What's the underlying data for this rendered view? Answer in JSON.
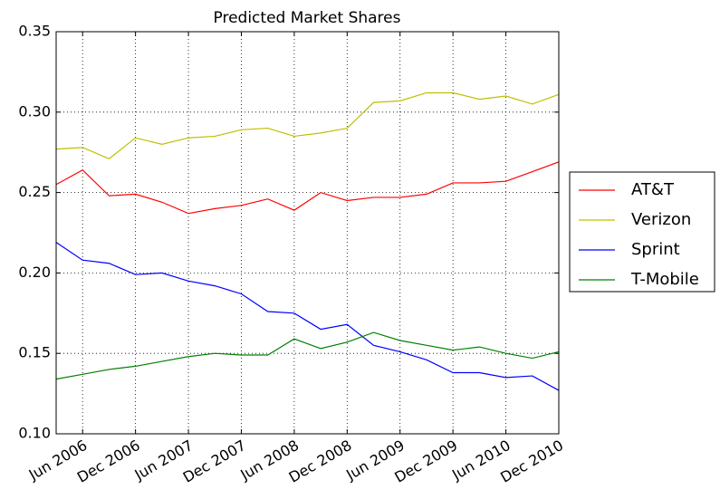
{
  "chart_data": {
    "type": "line",
    "title": "Predicted Market Shares",
    "x": [
      "2006-03",
      "2006-06",
      "2006-09",
      "2006-12",
      "2007-03",
      "2007-06",
      "2007-09",
      "2007-12",
      "2008-03",
      "2008-06",
      "2008-09",
      "2008-12",
      "2009-03",
      "2009-06",
      "2009-09",
      "2009-12",
      "2010-03",
      "2010-06",
      "2010-09",
      "2010-12"
    ],
    "xlim": [
      "2006-03",
      "2010-12"
    ],
    "xticks": [
      {
        "value": "2006-06",
        "label": "Jun 2006"
      },
      {
        "value": "2006-12",
        "label": "Dec 2006"
      },
      {
        "value": "2007-06",
        "label": "Jun 2007"
      },
      {
        "value": "2007-12",
        "label": "Dec 2007"
      },
      {
        "value": "2008-06",
        "label": "Jun 2008"
      },
      {
        "value": "2008-12",
        "label": "Dec 2008"
      },
      {
        "value": "2009-06",
        "label": "Jun 2009"
      },
      {
        "value": "2009-12",
        "label": "Dec 2009"
      },
      {
        "value": "2010-06",
        "label": "Jun 2010"
      },
      {
        "value": "2010-12",
        "label": "Dec 2010"
      }
    ],
    "ylim": [
      0.1,
      0.35
    ],
    "yticks": [
      {
        "value": 0.1,
        "label": "0.10"
      },
      0.15,
      {
        "value": 0.2,
        "label": "0.20"
      },
      0.25,
      {
        "value": 0.3,
        "label": "0.30"
      },
      0.35
    ],
    "grid": true,
    "legend": "outside-right",
    "series": [
      {
        "name": "AT&T",
        "color": "#ff0000",
        "values": [
          0.255,
          0.264,
          0.248,
          0.249,
          0.244,
          0.237,
          0.24,
          0.242,
          0.246,
          0.239,
          0.25,
          0.245,
          0.247,
          0.247,
          0.249,
          0.256,
          0.256,
          0.257,
          0.263,
          0.269
        ]
      },
      {
        "name": "Verizon",
        "color": "#bfbf00",
        "values": [
          0.277,
          0.278,
          0.271,
          0.284,
          0.28,
          0.284,
          0.285,
          0.289,
          0.29,
          0.285,
          0.287,
          0.29,
          0.306,
          0.307,
          0.312,
          0.312,
          0.308,
          0.31,
          0.305,
          0.311
        ]
      },
      {
        "name": "Sprint",
        "color": "#0000ff",
        "values": [
          0.219,
          0.208,
          0.206,
          0.199,
          0.2,
          0.195,
          0.192,
          0.187,
          0.176,
          0.175,
          0.165,
          0.168,
          0.155,
          0.151,
          0.146,
          0.138,
          0.138,
          0.135,
          0.136,
          0.127
        ]
      },
      {
        "name": "T-Mobile",
        "color": "#008000",
        "values": [
          0.134,
          0.137,
          0.14,
          0.142,
          0.145,
          0.148,
          0.15,
          0.149,
          0.149,
          0.159,
          0.153,
          0.157,
          0.163,
          0.158,
          0.155,
          0.152,
          0.154,
          0.15,
          0.147,
          0.151
        ]
      }
    ]
  }
}
